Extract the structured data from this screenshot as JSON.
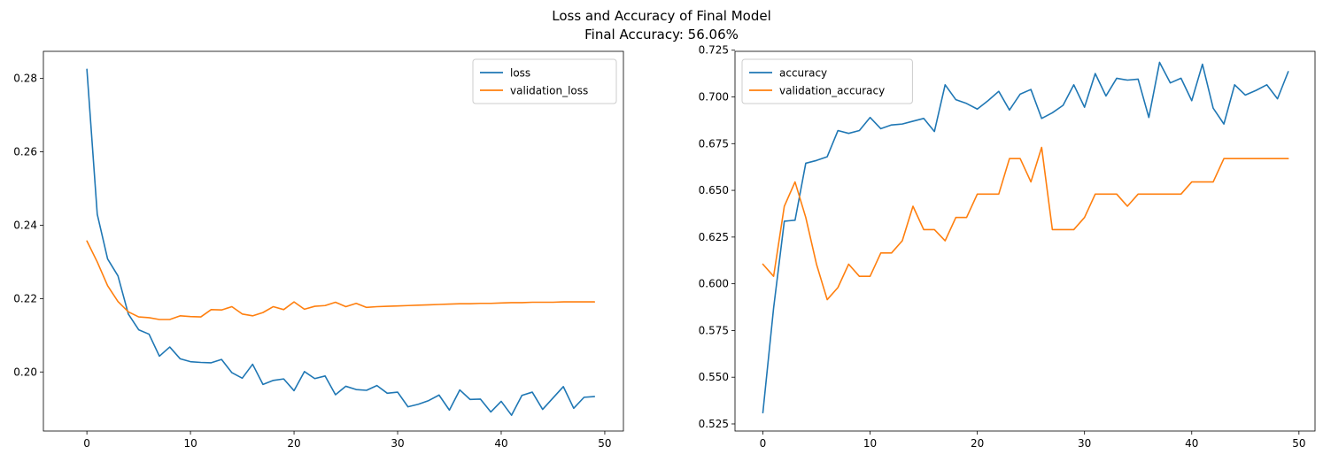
{
  "figure": {
    "suptitle_line1": "Loss and Accuracy of Final Model",
    "suptitle_line2": "Final Accuracy: 56.06%"
  },
  "colors": {
    "series1": "#1f77b4",
    "series2": "#ff7f0e",
    "axis": "#000000",
    "background": "#ffffff"
  },
  "chart_data": [
    {
      "type": "line",
      "title": "",
      "xlabel": "",
      "ylabel": "",
      "xlim": [
        -4.2,
        51.8
      ],
      "ylim": [
        0.1839,
        0.2874
      ],
      "xticks": [
        0,
        10,
        20,
        30,
        40,
        50
      ],
      "yticks": [
        0.2,
        0.22,
        0.24,
        0.26,
        0.28
      ],
      "ytick_decimals": 2,
      "grid": false,
      "legend": "top-right",
      "x": [
        0,
        1,
        2,
        3,
        4,
        5,
        6,
        7,
        8,
        9,
        10,
        11,
        12,
        13,
        14,
        15,
        16,
        17,
        18,
        19,
        20,
        21,
        22,
        23,
        24,
        25,
        26,
        27,
        28,
        29,
        30,
        31,
        32,
        33,
        34,
        35,
        36,
        37,
        38,
        39,
        40,
        41,
        42,
        43,
        44,
        45,
        46,
        47,
        48,
        49
      ],
      "series": [
        {
          "name": "loss",
          "color": "#1f77b4",
          "values": [
            0.2825,
            0.243,
            0.2308,
            0.2262,
            0.2158,
            0.2115,
            0.2103,
            0.2043,
            0.2068,
            0.2036,
            0.2028,
            0.2026,
            0.2025,
            0.2034,
            0.1998,
            0.1983,
            0.2021,
            0.1966,
            0.1977,
            0.1981,
            0.1949,
            0.2001,
            0.1982,
            0.1989,
            0.1938,
            0.1961,
            0.1952,
            0.195,
            0.1963,
            0.1942,
            0.1945,
            0.1905,
            0.1912,
            0.1922,
            0.1937,
            0.1896,
            0.1951,
            0.1925,
            0.1926,
            0.1891,
            0.192,
            0.1882,
            0.1936,
            0.1945,
            0.1898,
            0.1929,
            0.196,
            0.1901,
            0.1931,
            0.1933
          ]
        },
        {
          "name": "validation_loss",
          "color": "#ff7f0e",
          "values": [
            0.2357,
            0.23,
            0.2235,
            0.2192,
            0.2164,
            0.215,
            0.2148,
            0.2143,
            0.2143,
            0.2153,
            0.2151,
            0.215,
            0.217,
            0.2169,
            0.2178,
            0.2158,
            0.2153,
            0.2162,
            0.2178,
            0.217,
            0.2191,
            0.2171,
            0.2179,
            0.2181,
            0.219,
            0.2178,
            0.2187,
            0.2176,
            0.2178,
            0.2179,
            0.218,
            0.2181,
            0.2182,
            0.2183,
            0.2184,
            0.2185,
            0.2186,
            0.2186,
            0.2187,
            0.2187,
            0.2188,
            0.2189,
            0.2189,
            0.219,
            0.219,
            0.219,
            0.2191,
            0.2191,
            0.2191,
            0.2191
          ]
        }
      ]
    },
    {
      "type": "line",
      "title": "",
      "xlabel": "",
      "ylabel": "",
      "xlim": [
        -2.6,
        51.5
      ],
      "ylim": [
        0.5212,
        0.7244
      ],
      "xticks": [
        0,
        10,
        20,
        30,
        40,
        50
      ],
      "yticks": [
        0.525,
        0.55,
        0.575,
        0.6,
        0.625,
        0.65,
        0.675,
        0.7,
        0.725
      ],
      "ytick_decimals": 3,
      "grid": false,
      "legend": "top-left",
      "x": [
        0,
        1,
        2,
        3,
        4,
        5,
        6,
        7,
        8,
        9,
        10,
        11,
        12,
        13,
        14,
        15,
        16,
        17,
        18,
        19,
        20,
        21,
        22,
        23,
        24,
        25,
        26,
        27,
        28,
        29,
        30,
        31,
        32,
        33,
        34,
        35,
        36,
        37,
        38,
        39,
        40,
        41,
        42,
        43,
        44,
        45,
        46,
        47,
        48,
        49
      ],
      "series": [
        {
          "name": "accuracy",
          "color": "#1f77b4",
          "values": [
            0.531,
            0.587,
            0.6335,
            0.634,
            0.6645,
            0.666,
            0.668,
            0.682,
            0.6805,
            0.682,
            0.689,
            0.683,
            0.685,
            0.6855,
            0.687,
            0.6885,
            0.6815,
            0.7065,
            0.6985,
            0.6965,
            0.6935,
            0.698,
            0.703,
            0.693,
            0.7015,
            0.704,
            0.6885,
            0.6915,
            0.6955,
            0.7065,
            0.6945,
            0.7125,
            0.7005,
            0.71,
            0.709,
            0.7095,
            0.689,
            0.7185,
            0.7075,
            0.71,
            0.698,
            0.7175,
            0.694,
            0.6855,
            0.7065,
            0.701,
            0.7035,
            0.7065,
            0.699,
            0.7135
          ]
        },
        {
          "name": "validation_accuracy",
          "color": "#ff7f0e",
          "values": [
            0.6105,
            0.604,
            0.6415,
            0.6545,
            0.6355,
            0.6105,
            0.5915,
            0.598,
            0.6105,
            0.604,
            0.604,
            0.6165,
            0.6165,
            0.623,
            0.6415,
            0.629,
            0.629,
            0.623,
            0.6355,
            0.6355,
            0.648,
            0.648,
            0.648,
            0.667,
            0.667,
            0.6545,
            0.673,
            0.629,
            0.629,
            0.629,
            0.6355,
            0.648,
            0.648,
            0.648,
            0.6415,
            0.648,
            0.648,
            0.648,
            0.648,
            0.648,
            0.6545,
            0.6545,
            0.6545,
            0.667,
            0.667,
            0.667,
            0.667,
            0.667,
            0.667,
            0.667
          ]
        }
      ]
    }
  ]
}
